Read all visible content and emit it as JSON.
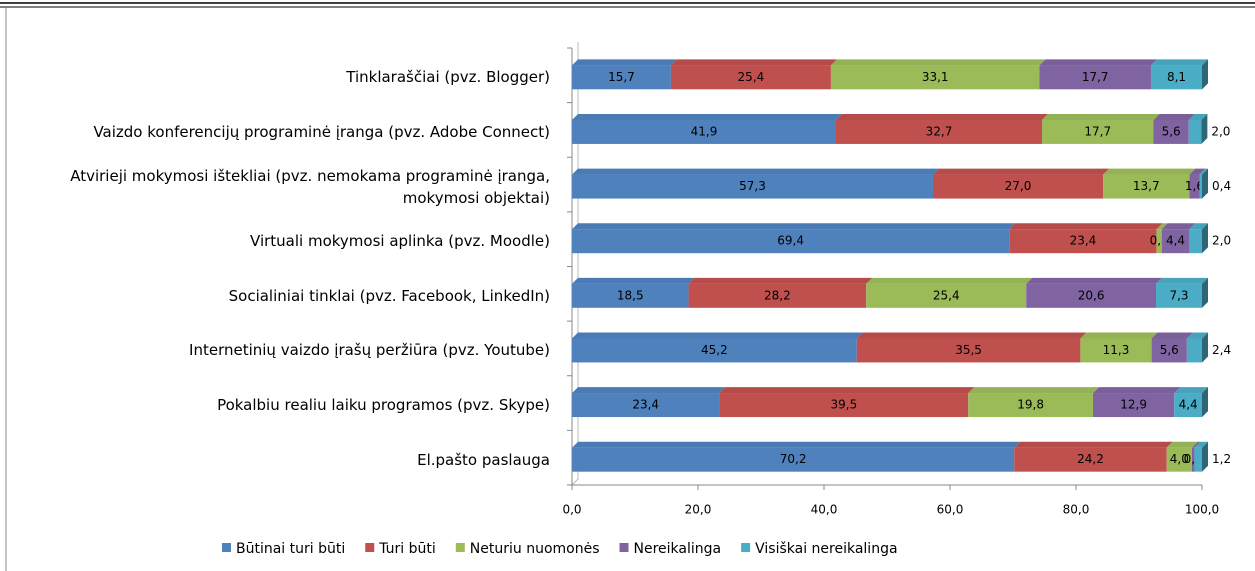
{
  "chart_data": {
    "type": "stacked-bar-horizontal",
    "categories": [
      "Tinklaraščiai (pvz. Blogger)",
      "Vaizdo konferencijų programinė įranga (pvz. Adobe Connect)",
      "Atvirieji mokymosi ištekliai (pvz. nemokama programinė įranga, mokymosi objektai)",
      "Virtuali mokymosi aplinka (pvz. Moodle)",
      "Socialiniai tinklai (pvz. Facebook, LinkedIn)",
      "Internetinių vaizdo įrašų peržiūra (pvz. Youtube)",
      "Pokalbiu realiu laiku programos (pvz. Skype)",
      "El.pašto paslauga"
    ],
    "series": [
      {
        "name": "Būtinai turi būti",
        "color": "#4f81bd",
        "values": [
          15.7,
          41.9,
          57.3,
          69.4,
          18.5,
          45.2,
          23.4,
          70.2
        ],
        "value_labels": [
          "15,7",
          "41,9",
          "57,3",
          "69,4",
          "18,5",
          "45,2",
          "23,4",
          "70,2"
        ]
      },
      {
        "name": "Turi būti",
        "color": "#c0504d",
        "values": [
          25.4,
          32.7,
          27.0,
          23.4,
          28.2,
          35.5,
          39.5,
          24.2
        ],
        "value_labels": [
          "25,4",
          "32,7",
          "27,0",
          "23,4",
          "28,2",
          "35,5",
          "39,5",
          "24,2"
        ]
      },
      {
        "name": "Neturiu nuomonės",
        "color": "#9bbb59",
        "values": [
          33.1,
          17.7,
          13.7,
          0.8,
          25.4,
          11.3,
          19.8,
          4.0
        ],
        "value_labels": [
          "33,1",
          "17,7",
          "13,7",
          "0,8",
          "25,4",
          "11,3",
          "19,8",
          "4,0"
        ]
      },
      {
        "name": "Nereikalinga",
        "color": "#8064a2",
        "values": [
          17.7,
          5.6,
          1.6,
          4.4,
          20.6,
          5.6,
          12.9,
          0.4
        ],
        "value_labels": [
          "17,7",
          "5,6",
          "1,6",
          "4,4",
          "20,6",
          "5,6",
          "12,9",
          "0,4"
        ]
      },
      {
        "name": "Visiškai nereikalinga",
        "color": "#4bacc6",
        "values": [
          8.1,
          2.0,
          0.4,
          2.0,
          7.3,
          2.4,
          4.4,
          1.2
        ],
        "value_labels": [
          "8,1",
          "2,0",
          "0,4",
          "2,0",
          "7,3",
          "2,4",
          "4,4",
          "1,2"
        ]
      }
    ],
    "xlim": [
      0,
      100
    ],
    "xticks": [
      {
        "value": 0,
        "label": "0,0"
      },
      {
        "value": 20,
        "label": "20,0"
      },
      {
        "value": 40,
        "label": "40,0"
      },
      {
        "value": 60,
        "label": "60,0"
      },
      {
        "value": 80,
        "label": "80,0"
      },
      {
        "value": 100,
        "label": "100,0"
      }
    ],
    "legend": "bottom"
  }
}
